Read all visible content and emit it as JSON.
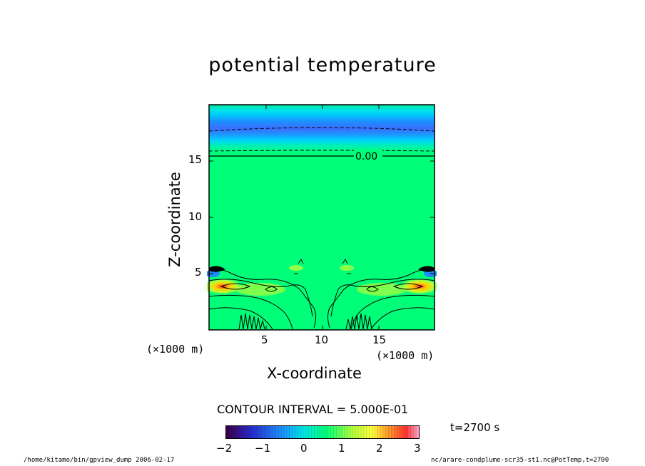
{
  "chart_data": {
    "type": "heatmap",
    "title": "potential temperature",
    "xlabel": "X-coordinate",
    "ylabel": "Z-coordinate",
    "x_unit": "(×1000 m)",
    "y_unit": "(×1000 m)",
    "xlim": [
      0,
      19.6
    ],
    "ylim": [
      0,
      20
    ],
    "x_ticks": [
      "5",
      "10",
      "15"
    ],
    "y_ticks": [
      "5",
      "10",
      "15"
    ],
    "contour_label": "0.00",
    "contour_interval_text": "CONTOUR INTERVAL = 5.000E-01",
    "colorbar": {
      "range": [
        -2,
        3
      ],
      "tick_labels": [
        "−2",
        "−1",
        "0",
        "1",
        "2",
        "3"
      ]
    },
    "time_label": "t=2700 s"
  },
  "footer": {
    "left": "/home/kitamo/bin/gpview_dump  2006-02-17",
    "right": "nc/arare-condplume-scr35-st1.nc@PotTemp,t=2700"
  }
}
